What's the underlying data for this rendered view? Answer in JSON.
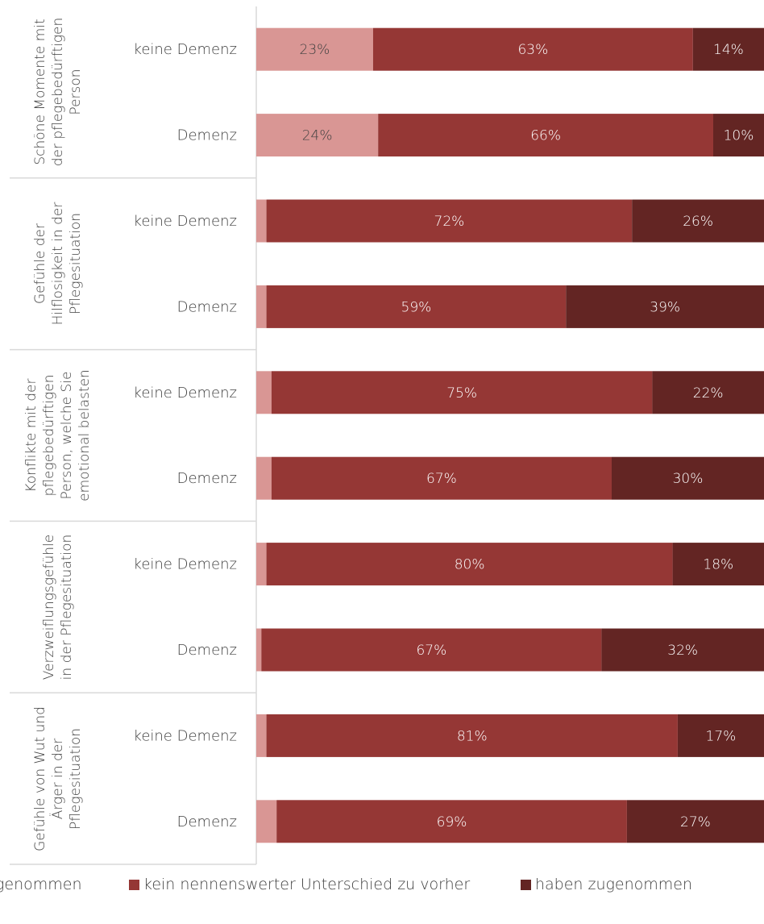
{
  "chart_data": {
    "type": "bar",
    "orientation": "horizontal",
    "stacked": true,
    "xlim": [
      0,
      100
    ],
    "value_format": "{v}%",
    "grid": false,
    "legend_position": "bottom",
    "series": [
      {
        "name": "haben abgenommen",
        "color": "#d99694",
        "values": [
          23,
          24,
          2,
          2,
          3,
          3,
          2,
          1,
          2,
          4
        ]
      },
      {
        "name": "kein nennenswerter Unterschied zu vorher",
        "color": "#953735",
        "values": [
          63,
          66,
          72,
          59,
          75,
          67,
          80,
          67,
          81,
          69
        ]
      },
      {
        "name": "haben zugenommen",
        "color": "#632523",
        "values": [
          14,
          10,
          26,
          39,
          22,
          30,
          18,
          32,
          17,
          27
        ]
      }
    ],
    "categories": [
      "keine Demenz",
      "Demenz",
      "keine Demenz",
      "Demenz",
      "keine Demenz",
      "Demenz",
      "keine Demenz",
      "Demenz",
      "keine Demenz",
      "Demenz"
    ],
    "groups": [
      {
        "lines": [
          "Schöne Momente mit",
          "der pflegebedürftigen",
          "Person"
        ],
        "start": 0,
        "count": 2
      },
      {
        "lines": [
          "Gefühle der",
          "Hilflosigkeit in der",
          "Pflegesituation"
        ],
        "start": 2,
        "count": 2
      },
      {
        "lines": [
          "Konflikte mit der",
          "pflegebedürftigen",
          "Person, welche Sie",
          "emotional belasten"
        ],
        "start": 4,
        "count": 2
      },
      {
        "lines": [
          "Verzweiflungsgefühle",
          "in der Pflegesituation"
        ],
        "start": 6,
        "count": 2
      },
      {
        "lines": [
          "Gefühle von Wut und",
          "Ärger in der",
          "Pflegesituation"
        ],
        "start": 8,
        "count": 2
      }
    ]
  },
  "legend": {
    "visible_labels": [
      "genommen",
      "kein nennenswerter Unterschied zu vorher",
      "haben zugenommen"
    ]
  }
}
